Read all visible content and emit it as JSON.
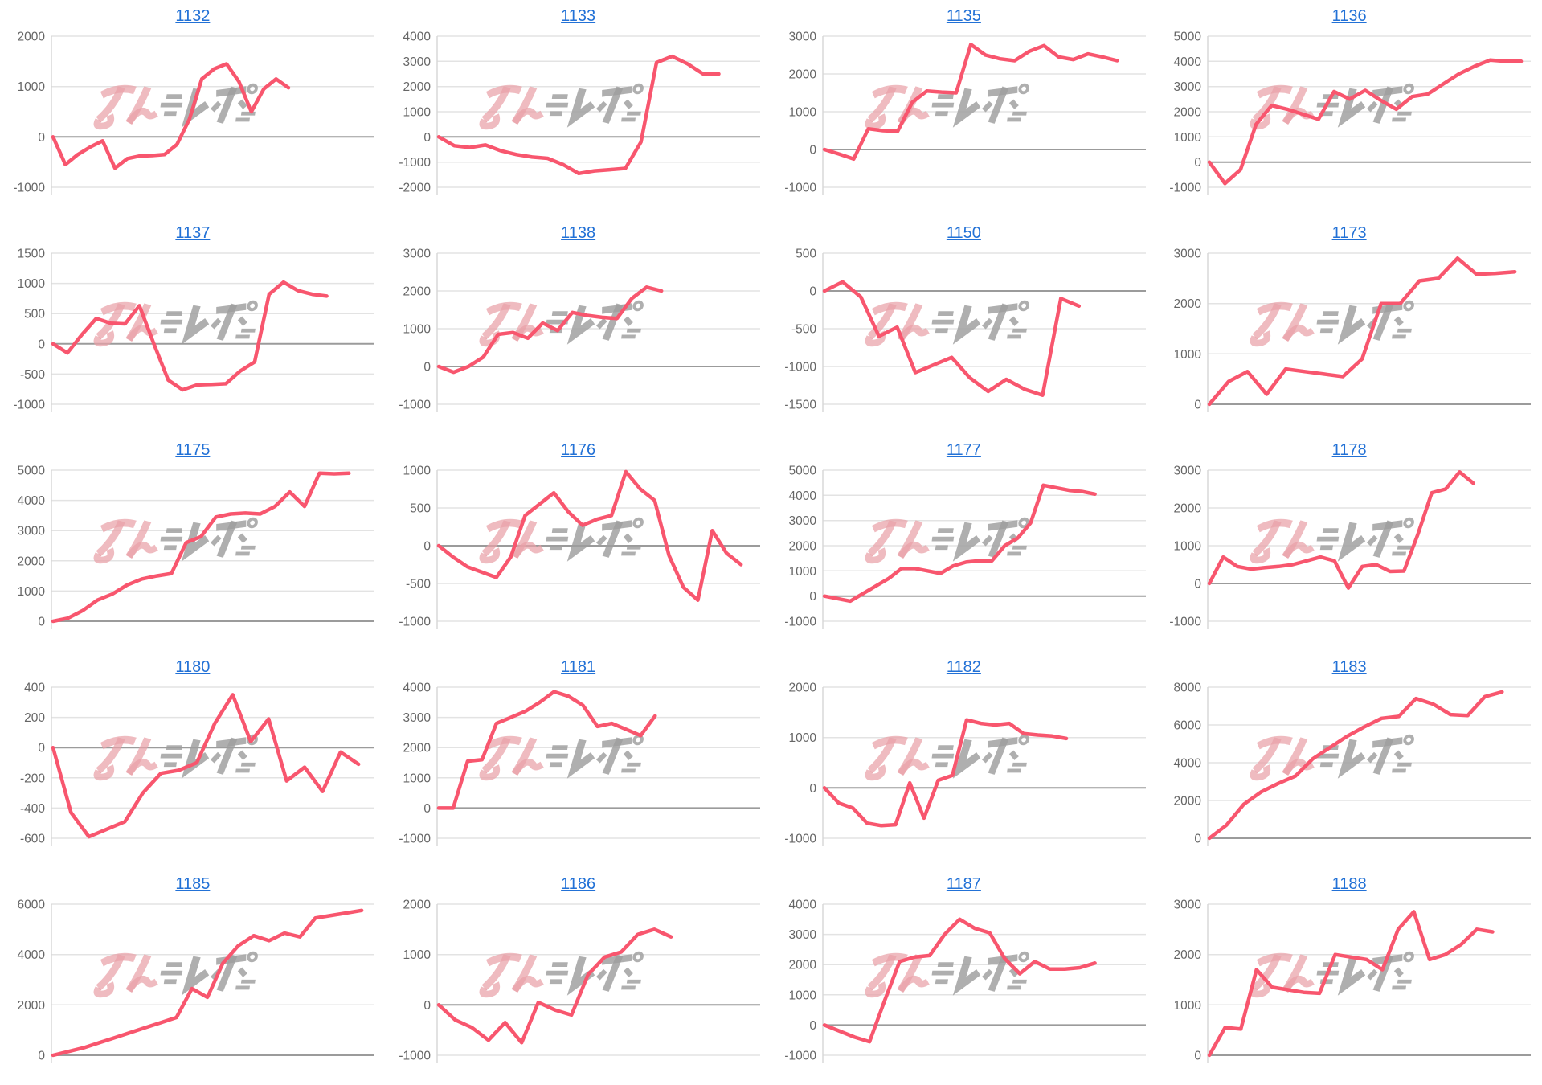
{
  "page": {
    "background": "#ffffff",
    "description": "Grid of 20 machine payout line charts, 4 columns by 5 rows"
  },
  "styles": {
    "series_color": "#F8566E",
    "link_blue": "#2271D6",
    "axis_label_color": "#666666",
    "grid_color": "#E3E3E3",
    "zero_line_color": "#9B9B9B",
    "axis_line_color": "#D8D8D8",
    "watermark_pink": "#E9A1A7",
    "watermark_gray": "#9E9E9E",
    "watermark_text": "みんレポ"
  },
  "chart_data": [
    {
      "type": "line",
      "title": "1132",
      "yticks": [
        2000,
        1000,
        0,
        -1000
      ],
      "end_frac": 0.74,
      "values": [
        0,
        -550,
        -350,
        -200,
        -80,
        -620,
        -430,
        -380,
        -370,
        -350,
        -150,
        350,
        1150,
        1350,
        1450,
        1100,
        500,
        950,
        1150,
        975
      ]
    },
    {
      "type": "line",
      "title": "1133",
      "yticks": [
        4000,
        3000,
        2000,
        1000,
        0,
        -1000,
        -2000
      ],
      "end_frac": 0.88,
      "values": [
        0,
        -350,
        -420,
        -320,
        -550,
        -700,
        -800,
        -850,
        -1100,
        -1450,
        -1350,
        -1300,
        -1250,
        -200,
        2950,
        3200,
        2900,
        2500,
        2500
      ]
    },
    {
      "type": "line",
      "title": "1135",
      "yticks": [
        3000,
        2000,
        1000,
        0,
        -1000
      ],
      "end_frac": 0.92,
      "values": [
        0,
        -120,
        -250,
        550,
        500,
        480,
        1250,
        1550,
        1520,
        1500,
        2780,
        2500,
        2400,
        2350,
        2600,
        2750,
        2450,
        2380,
        2530,
        2450,
        2350
      ]
    },
    {
      "type": "line",
      "title": "1136",
      "yticks": [
        5000,
        4000,
        3000,
        2000,
        1000,
        0,
        -1000
      ],
      "end_frac": 0.98,
      "values": [
        0,
        -850,
        -300,
        1500,
        2250,
        2100,
        1900,
        1700,
        2800,
        2500,
        2850,
        2450,
        2100,
        2600,
        2700,
        3100,
        3500,
        3800,
        4050,
        4000,
        4000
      ]
    },
    {
      "type": "line",
      "title": "1137",
      "yticks": [
        1500,
        1000,
        500,
        0,
        -500,
        -1000
      ],
      "end_frac": 0.86,
      "values": [
        0,
        -150,
        150,
        420,
        340,
        330,
        630,
        0,
        -600,
        -760,
        -680,
        -670,
        -660,
        -450,
        -300,
        820,
        1020,
        880,
        820,
        790
      ]
    },
    {
      "type": "line",
      "title": "1138",
      "yticks": [
        3000,
        2000,
        1000,
        0,
        -1000
      ],
      "end_frac": 0.7,
      "values": [
        0,
        -150,
        0,
        250,
        850,
        900,
        750,
        1150,
        950,
        1430,
        1350,
        1300,
        1270,
        1800,
        2100,
        2000
      ]
    },
    {
      "type": "line",
      "title": "1150",
      "yticks": [
        500,
        0,
        -500,
        -1000,
        -1500
      ],
      "end_frac": 0.8,
      "values": [
        0,
        120,
        -80,
        -600,
        -480,
        -1080,
        -980,
        -880,
        -1150,
        -1330,
        -1170,
        -1300,
        -1380,
        -100,
        -200
      ]
    },
    {
      "type": "line",
      "title": "1173",
      "yticks": [
        3000,
        2000,
        1000,
        0
      ],
      "end_frac": 0.96,
      "values": [
        0,
        450,
        650,
        200,
        700,
        650,
        600,
        550,
        900,
        2000,
        2000,
        2450,
        2500,
        2900,
        2580,
        2600,
        2630
      ]
    },
    {
      "type": "line",
      "title": "1175",
      "yticks": [
        5000,
        4000,
        3000,
        2000,
        1000,
        0
      ],
      "end_frac": 0.93,
      "values": [
        0,
        100,
        350,
        700,
        900,
        1200,
        1400,
        1500,
        1580,
        2600,
        2800,
        3450,
        3550,
        3580,
        3550,
        3800,
        4280,
        3800,
        4900,
        4880,
        4900
      ]
    },
    {
      "type": "line",
      "title": "1176",
      "yticks": [
        1000,
        500,
        0,
        -500,
        -1000
      ],
      "end_frac": 0.95,
      "values": [
        0,
        -150,
        -280,
        -350,
        -420,
        -150,
        400,
        550,
        700,
        450,
        270,
        350,
        400,
        980,
        750,
        600,
        -130,
        -550,
        -720,
        200,
        -100,
        -250
      ]
    },
    {
      "type": "line",
      "title": "1177",
      "yticks": [
        5000,
        4000,
        3000,
        2000,
        1000,
        0,
        -1000
      ],
      "end_frac": 0.85,
      "values": [
        0,
        -100,
        -200,
        100,
        400,
        700,
        1100,
        1100,
        1000,
        900,
        1200,
        1350,
        1400,
        1400,
        2000,
        2300,
        2900,
        4400,
        4300,
        4200,
        4150,
        4050
      ]
    },
    {
      "type": "line",
      "title": "1178",
      "yticks": [
        3000,
        2000,
        1000,
        0,
        -1000
      ],
      "end_frac": 0.83,
      "values": [
        0,
        700,
        450,
        380,
        420,
        450,
        500,
        600,
        700,
        600,
        -120,
        450,
        500,
        320,
        330,
        1300,
        2400,
        2500,
        2950,
        2650
      ]
    },
    {
      "type": "line",
      "title": "1180",
      "yticks": [
        400,
        200,
        0,
        -200,
        -400,
        -600
      ],
      "end_frac": 0.96,
      "values": [
        0,
        -430,
        -590,
        -540,
        -490,
        -300,
        -170,
        -150,
        -100,
        160,
        350,
        40,
        190,
        -220,
        -130,
        -290,
        -30,
        -110
      ]
    },
    {
      "type": "line",
      "title": "1181",
      "yticks": [
        4000,
        3000,
        2000,
        1000,
        0,
        -1000
      ],
      "end_frac": 0.68,
      "values": [
        0,
        0,
        1550,
        1600,
        2800,
        3000,
        3200,
        3500,
        3850,
        3700,
        3400,
        2700,
        2800,
        2600,
        2400,
        3050
      ]
    },
    {
      "type": "line",
      "title": "1182",
      "yticks": [
        2000,
        1000,
        0,
        -1000
      ],
      "end_frac": 0.76,
      "values": [
        0,
        -300,
        -400,
        -700,
        -750,
        -730,
        100,
        -600,
        150,
        250,
        1350,
        1280,
        1250,
        1280,
        1080,
        1050,
        1030,
        980
      ]
    },
    {
      "type": "line",
      "title": "1183",
      "yticks": [
        8000,
        6000,
        4000,
        2000,
        0
      ],
      "end_frac": 0.92,
      "values": [
        0,
        700,
        1800,
        2450,
        2900,
        3300,
        4200,
        4800,
        5400,
        5900,
        6350,
        6450,
        7400,
        7100,
        6550,
        6500,
        7500,
        7750
      ]
    },
    {
      "type": "line",
      "title": "1185",
      "yticks": [
        6000,
        4000,
        2000,
        0
      ],
      "end_frac": 0.97,
      "values": [
        0,
        150,
        300,
        500,
        700,
        900,
        1100,
        1300,
        1500,
        2650,
        2300,
        3650,
        4350,
        4750,
        4550,
        4850,
        4700,
        5450,
        5550,
        5650,
        5750
      ]
    },
    {
      "type": "line",
      "title": "1186",
      "yticks": [
        2000,
        1000,
        0,
        -1000
      ],
      "end_frac": 0.73,
      "values": [
        0,
        -300,
        -450,
        -700,
        -350,
        -750,
        50,
        -100,
        -200,
        600,
        950,
        1050,
        1400,
        1500,
        1350
      ]
    },
    {
      "type": "line",
      "title": "1187",
      "yticks": [
        4000,
        3000,
        2000,
        1000,
        0,
        -1000
      ],
      "end_frac": 0.85,
      "values": [
        0,
        -200,
        -400,
        -550,
        800,
        2100,
        2250,
        2300,
        3000,
        3500,
        3200,
        3050,
        2200,
        1700,
        2100,
        1850,
        1850,
        1900,
        2050
      ]
    },
    {
      "type": "line",
      "title": "1188",
      "yticks": [
        3000,
        2000,
        1000,
        0
      ],
      "end_frac": 0.89,
      "values": [
        0,
        550,
        520,
        1700,
        1350,
        1300,
        1250,
        1230,
        2000,
        1950,
        1900,
        1700,
        2500,
        2850,
        1900,
        2000,
        2200,
        2500,
        2450
      ]
    }
  ]
}
